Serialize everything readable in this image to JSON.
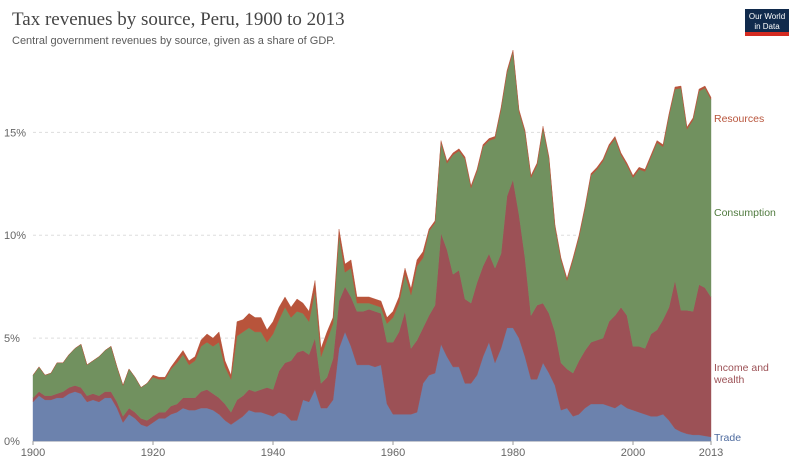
{
  "header": {
    "title": "Tax revenues by source, Peru, 1900 to 2013",
    "subtitle": "Central government revenues by source, given as a share of GDP.",
    "logo_line1": "Our World",
    "logo_line2": "in Data"
  },
  "colors": {
    "trade": "#6c82ad",
    "income_and_wealth": "#9c5156",
    "consumption": "#71915f",
    "resources": "#b8543b",
    "logo_bg": "#102a4c",
    "logo_accent": "#d42b21"
  },
  "chart_data": {
    "type": "area",
    "stacked": true,
    "title": "Tax revenues by source, Peru, 1900 to 2013",
    "subtitle": "Central government revenues by source, given as a share of GDP.",
    "x_ticks": [
      1900,
      1920,
      1940,
      1960,
      1980,
      2000,
      2013
    ],
    "y_ticks": [
      "0%",
      "5%",
      "10%",
      "15%"
    ],
    "ylim": [
      0,
      19
    ],
    "grid": true,
    "x": [
      1900,
      1901,
      1902,
      1903,
      1904,
      1905,
      1906,
      1907,
      1908,
      1909,
      1910,
      1911,
      1912,
      1913,
      1914,
      1915,
      1916,
      1917,
      1918,
      1919,
      1920,
      1921,
      1922,
      1923,
      1924,
      1925,
      1926,
      1927,
      1928,
      1929,
      1930,
      1931,
      1932,
      1933,
      1934,
      1935,
      1936,
      1937,
      1938,
      1939,
      1940,
      1941,
      1942,
      1943,
      1944,
      1945,
      1946,
      1947,
      1948,
      1949,
      1950,
      1951,
      1952,
      1953,
      1954,
      1955,
      1956,
      1957,
      1958,
      1959,
      1960,
      1961,
      1962,
      1963,
      1964,
      1965,
      1966,
      1967,
      1968,
      1969,
      1970,
      1971,
      1972,
      1973,
      1974,
      1975,
      1976,
      1977,
      1978,
      1979,
      1980,
      1981,
      1982,
      1983,
      1984,
      1985,
      1986,
      1987,
      1988,
      1989,
      1990,
      1991,
      1992,
      1993,
      1994,
      1995,
      1996,
      1997,
      1998,
      1999,
      2000,
      2001,
      2002,
      2003,
      2004,
      2005,
      2006,
      2007,
      2008,
      2009,
      2010,
      2011,
      2012,
      2013
    ],
    "series": [
      {
        "name": "Trade",
        "values": [
          1.9,
          2.2,
          2.0,
          2.0,
          2.1,
          2.1,
          2.3,
          2.4,
          2.3,
          1.9,
          2.0,
          1.9,
          2.1,
          2.1,
          1.6,
          0.9,
          1.3,
          1.1,
          0.8,
          0.7,
          0.9,
          1.1,
          1.1,
          1.3,
          1.4,
          1.6,
          1.5,
          1.5,
          1.6,
          1.6,
          1.5,
          1.3,
          1.0,
          0.8,
          1.0,
          1.2,
          1.5,
          1.4,
          1.4,
          1.3,
          1.2,
          1.4,
          1.3,
          1.0,
          1.0,
          2.0,
          1.9,
          2.5,
          1.6,
          1.6,
          2.0,
          4.5,
          5.3,
          4.6,
          3.7,
          3.7,
          3.7,
          3.6,
          3.7,
          1.8,
          1.3,
          1.3,
          1.3,
          1.3,
          1.4,
          2.8,
          3.2,
          3.3,
          4.7,
          4.1,
          3.6,
          3.6,
          2.8,
          2.8,
          3.2,
          4.1,
          4.8,
          3.8,
          4.5,
          5.5,
          5.5,
          5.0,
          4.1,
          3.0,
          3.0,
          3.8,
          3.3,
          2.7,
          1.5,
          1.6,
          1.2,
          1.3,
          1.6,
          1.8,
          1.8,
          1.8,
          1.7,
          1.6,
          1.8,
          1.6,
          1.5,
          1.4,
          1.3,
          1.2,
          1.2,
          1.3,
          1.0,
          0.6,
          0.45,
          0.35,
          0.3,
          0.3,
          0.25,
          0.2
        ]
      },
      {
        "name": "Income and wealth",
        "values": [
          0.2,
          0.2,
          0.2,
          0.2,
          0.2,
          0.3,
          0.3,
          0.3,
          0.3,
          0.3,
          0.3,
          0.3,
          0.3,
          0.3,
          0.3,
          0.3,
          0.3,
          0.3,
          0.3,
          0.3,
          0.3,
          0.3,
          0.3,
          0.4,
          0.4,
          0.5,
          0.6,
          0.6,
          0.8,
          0.9,
          0.8,
          0.8,
          0.8,
          0.6,
          1.0,
          1.0,
          1.0,
          1.0,
          1.1,
          1.3,
          1.3,
          2.0,
          2.5,
          2.9,
          3.3,
          2.4,
          2.3,
          2.5,
          1.2,
          1.5,
          2.0,
          2.3,
          2.2,
          2.4,
          2.6,
          2.6,
          2.7,
          2.7,
          2.5,
          3.0,
          3.5,
          4.0,
          5.0,
          3.2,
          3.5,
          2.7,
          2.9,
          3.3,
          5.4,
          5.2,
          4.5,
          4.7,
          4.1,
          3.9,
          4.5,
          4.4,
          4.3,
          4.6,
          4.6,
          6.4,
          7.2,
          6.0,
          4.8,
          3.1,
          3.6,
          2.9,
          2.9,
          2.6,
          2.3,
          1.9,
          2.1,
          2.6,
          2.8,
          3.0,
          3.1,
          3.2,
          4.1,
          4.5,
          4.7,
          4.5,
          3.1,
          3.2,
          3.2,
          4.0,
          4.2,
          4.6,
          5.5,
          7.2,
          5.9,
          6.0,
          6.0,
          7.3,
          7.2,
          6.8
        ]
      },
      {
        "name": "Consumption",
        "values": [
          1.1,
          1.2,
          1.0,
          1.1,
          1.5,
          1.4,
          1.6,
          1.8,
          2.1,
          1.5,
          1.6,
          1.9,
          2.0,
          2.2,
          1.7,
          1.5,
          1.9,
          1.7,
          1.5,
          1.8,
          1.9,
          1.6,
          1.6,
          1.8,
          2.0,
          2.1,
          1.6,
          1.8,
          2.2,
          2.3,
          2.3,
          2.7,
          1.8,
          1.6,
          3.1,
          3.1,
          3.0,
          2.9,
          2.8,
          2.2,
          2.7,
          2.5,
          2.7,
          2.1,
          2.0,
          1.8,
          1.6,
          2.3,
          1.3,
          1.8,
          1.7,
          3.2,
          0.7,
          1.4,
          0.4,
          0.4,
          0.3,
          0.3,
          0.3,
          0.9,
          1.2,
          1.4,
          1.8,
          2.6,
          3.6,
          3.4,
          4.1,
          4.0,
          4.4,
          4.2,
          5.8,
          5.8,
          6.8,
          5.6,
          5.4,
          5.8,
          5.5,
          6.3,
          7.0,
          6.0,
          6.2,
          5.0,
          6.1,
          6.7,
          6.8,
          8.5,
          7.5,
          5.1,
          5.0,
          4.3,
          5.5,
          6.0,
          6.9,
          8.1,
          8.3,
          8.6,
          8.5,
          8.6,
          7.4,
          7.3,
          8.2,
          8.6,
          8.6,
          8.6,
          9.1,
          8.4,
          9.3,
          9.3,
          10.8,
          8.8,
          9.3,
          9.4,
          9.7,
          9.6
        ]
      },
      {
        "name": "Resources",
        "values": [
          0,
          0,
          0,
          0,
          0,
          0,
          0,
          0,
          0,
          0,
          0,
          0,
          0,
          0,
          0,
          0,
          0,
          0,
          0,
          0,
          0.1,
          0.1,
          0.1,
          0.1,
          0.2,
          0.2,
          0.2,
          0.2,
          0.3,
          0.4,
          0.4,
          0.5,
          0.3,
          0.2,
          0.7,
          0.6,
          0.7,
          0.7,
          0.7,
          0.6,
          0.6,
          0.6,
          0.5,
          0.5,
          0.6,
          0.5,
          0.5,
          0.5,
          0.4,
          0.4,
          0.3,
          0.3,
          0.4,
          0.4,
          0.3,
          0.3,
          0.3,
          0.3,
          0.3,
          0.3,
          0.3,
          0.3,
          0.3,
          0.3,
          0.3,
          0.3,
          0.1,
          0.1,
          0.1,
          0.1,
          0.1,
          0.1,
          0.1,
          0.1,
          0.1,
          0.1,
          0.1,
          0.1,
          0.1,
          0.1,
          0.1,
          0.1,
          0.1,
          0.1,
          0.1,
          0.1,
          0.1,
          0.1,
          0.1,
          0.1,
          0.1,
          0.1,
          0.1,
          0.1,
          0.1,
          0.1,
          0.1,
          0.1,
          0.1,
          0.1,
          0.1,
          0.1,
          0.1,
          0.1,
          0.1,
          0.1,
          0.1,
          0.1,
          0.1,
          0.1,
          0.1,
          0.1,
          0.1,
          0.1
        ]
      }
    ],
    "labels": {
      "resources": "Resources",
      "consumption": "Consumption",
      "income_line1": "Income and",
      "income_line2": "wealth",
      "trade": "Trade"
    }
  }
}
